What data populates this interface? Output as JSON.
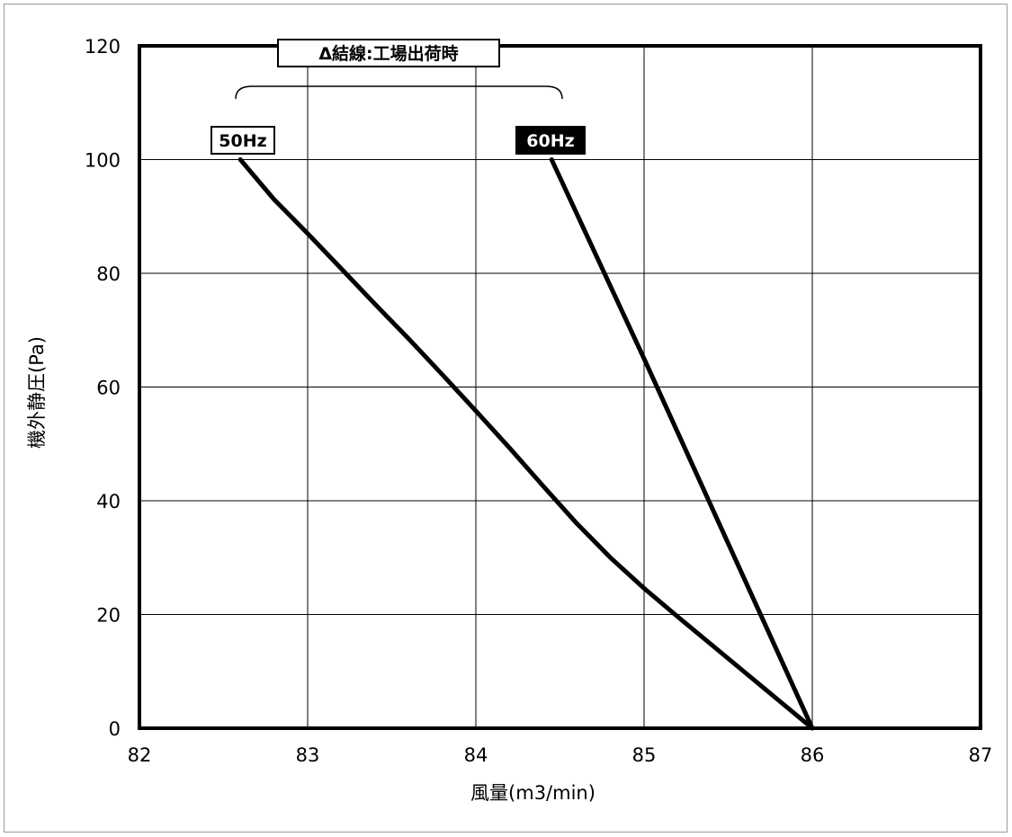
{
  "chart_data": {
    "type": "line",
    "title": "",
    "xlabel": "風量(m3/min)",
    "ylabel": "機外静圧(Pa)",
    "xlim": [
      82,
      87
    ],
    "ylim": [
      0,
      120
    ],
    "x_ticks": [
      "82",
      "83",
      "84",
      "85",
      "86",
      "87"
    ],
    "y_ticks": [
      "0",
      "20",
      "40",
      "60",
      "80",
      "100",
      "120"
    ],
    "grid": true,
    "annotation": "Δ結線:工場出荷時",
    "series": [
      {
        "name": "50Hz",
        "color": "#000000",
        "label_style": "outlined",
        "x": [
          82.6,
          82.8,
          83.0,
          83.2,
          83.4,
          83.6,
          83.8,
          84.0,
          84.2,
          84.4,
          84.6,
          84.8,
          85.0,
          85.2,
          85.4,
          85.6,
          85.8,
          86.0
        ],
        "y": [
          100,
          93,
          87,
          80.8,
          74.6,
          68.5,
          62.2,
          55.8,
          49.3,
          42.6,
          36.0,
          30.0,
          24.6,
          19.6,
          14.7,
          9.8,
          4.9,
          0
        ]
      },
      {
        "name": "60Hz",
        "color": "#000000",
        "label_style": "filled",
        "x": [
          84.45,
          85.0,
          86.0
        ],
        "y": [
          100,
          65,
          0
        ]
      }
    ]
  }
}
